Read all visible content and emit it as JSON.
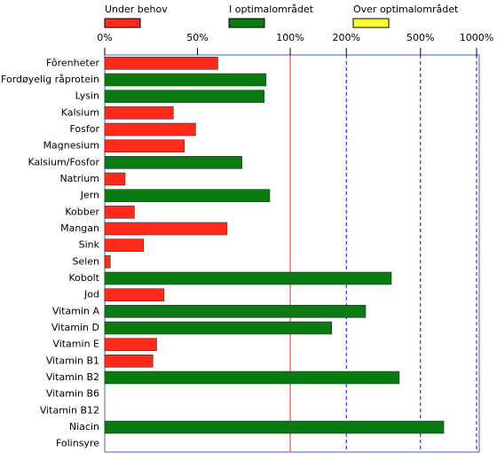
{
  "chart_data": {
    "type": "hbar",
    "xscale": {
      "type": "linear-log",
      "break": 100
    },
    "reference_line": 100,
    "reference_color": "#e03020",
    "grid_color": "#0000ff",
    "xlim": [
      0,
      1000
    ],
    "xticks": [
      {
        "value": 0,
        "label": "0%"
      },
      {
        "value": 50,
        "label": "50%"
      },
      {
        "value": 100,
        "label": "100%"
      },
      {
        "value": 200,
        "label": "200%"
      },
      {
        "value": 500,
        "label": "500%"
      },
      {
        "value": 1000,
        "label": "1000%"
      }
    ],
    "categories": [
      "Fôrenheter",
      "Fordøyelig råprotein",
      "Lysin",
      "Kalsium",
      "Fosfor",
      "Magnesium",
      "Kalsium/Fosfor",
      "Natrium",
      "Jern",
      "Kobber",
      "Mangan",
      "Sink",
      "Selen",
      "Kobolt",
      "Jod",
      "Vitamin A",
      "Vitamin D",
      "Vitamin E",
      "Vitamin B1",
      "Vitamin B2",
      "Vitamin B6",
      "Vitamin B12",
      "Niacin",
      "Folinsyre"
    ],
    "series": [
      {
        "name": "Under behov",
        "color": "#ff2a1a",
        "values": [
          61,
          null,
          null,
          37,
          49,
          43,
          null,
          11,
          null,
          16,
          66,
          21,
          3,
          null,
          32,
          null,
          null,
          28,
          26,
          null,
          null,
          null,
          null,
          null
        ]
      },
      {
        "name": "I optimalområdet",
        "color": "#0a7a12",
        "values": [
          null,
          87,
          86,
          null,
          null,
          null,
          74,
          null,
          89,
          null,
          null,
          null,
          null,
          349,
          null,
          254,
          167,
          null,
          null,
          385,
          null,
          null,
          667,
          null
        ]
      },
      {
        "name": "Over optimalområdet",
        "color": "#ffff33",
        "values": [
          null,
          null,
          null,
          null,
          null,
          null,
          null,
          null,
          null,
          null,
          null,
          null,
          null,
          null,
          null,
          null,
          null,
          null,
          null,
          null,
          null,
          null,
          null,
          null
        ]
      }
    ]
  }
}
